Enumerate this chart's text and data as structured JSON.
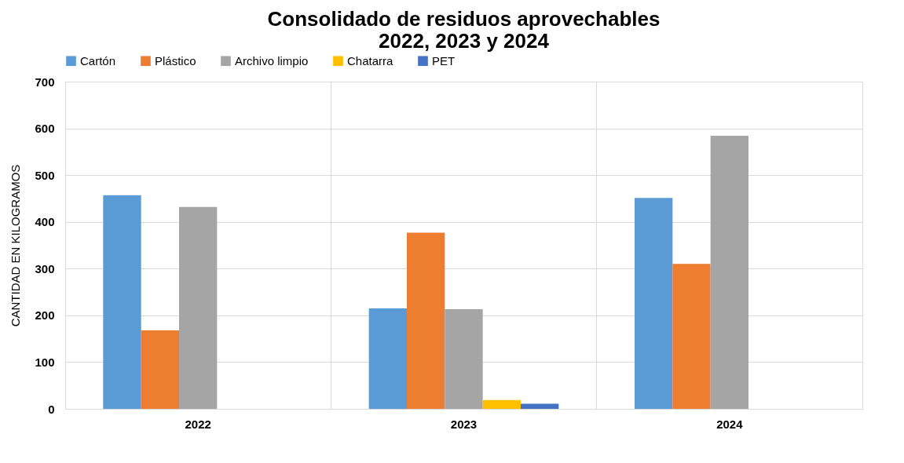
{
  "chart_data": {
    "type": "bar",
    "title": "Consolidado de residuos aprovechables\n2022, 2023 y 2024",
    "ylabel": "CANTIDAD EN KILOGRAMOS",
    "categories": [
      "2022",
      "2023",
      "2024"
    ],
    "series": [
      {
        "name": "Cartón",
        "color": "#5b9bd5",
        "values": [
          457,
          215,
          451
        ]
      },
      {
        "name": "Plástico",
        "color": "#ed7d31",
        "values": [
          168,
          377,
          310
        ]
      },
      {
        "name": "Archivo limpio",
        "color": "#a5a5a5",
        "values": [
          432,
          213,
          584
        ]
      },
      {
        "name": "Chatarra",
        "color": "#ffc000",
        "values": [
          0,
          19,
          0
        ]
      },
      {
        "name": "PET",
        "color": "#4472c4",
        "values": [
          0,
          11,
          0
        ]
      }
    ],
    "ylim": [
      0,
      700
    ],
    "yticks": [
      0,
      100,
      200,
      300,
      400,
      500,
      600,
      700
    ],
    "grid": true,
    "legend": "top"
  }
}
